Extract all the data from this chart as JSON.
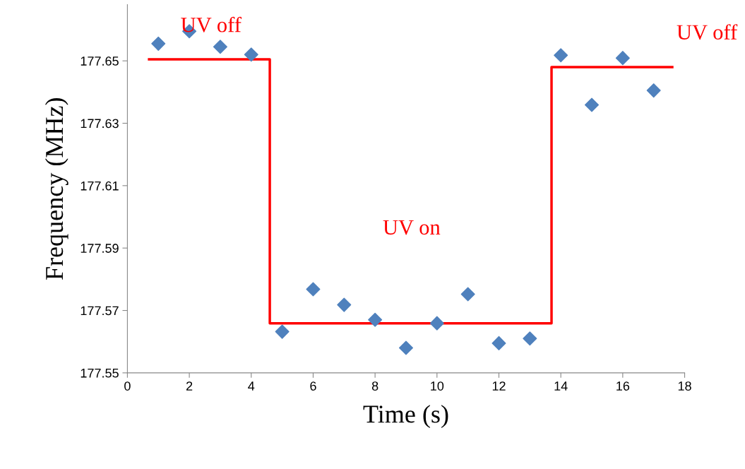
{
  "chart_data": {
    "type": "scatter",
    "xlabel": "Time (s)",
    "ylabel": "Frequency (MHz)",
    "xlim": [
      0,
      18
    ],
    "ylim": [
      177.55,
      177.668
    ],
    "xticks": [
      0,
      2,
      4,
      6,
      8,
      10,
      12,
      14,
      16,
      18
    ],
    "yticks": [
      177.55,
      177.57,
      177.59,
      177.61,
      177.63,
      177.65
    ],
    "grid": false,
    "legend": false,
    "x": [
      1,
      2,
      3,
      4,
      5,
      6,
      7,
      8,
      9,
      10,
      11,
      12,
      13,
      14,
      15,
      16,
      17
    ],
    "series": [
      {
        "marker": "diamond",
        "color": "#4f81bd",
        "values": [
          177.6555,
          177.6595,
          177.6545,
          177.652,
          177.5632,
          177.5768,
          177.5718,
          177.567,
          177.558,
          177.5659,
          177.5752,
          177.5595,
          177.561,
          177.6518,
          177.6359,
          177.6509,
          177.6405
        ]
      },
      {
        "type": "line",
        "color": "#ff0000",
        "x": [
          0.7,
          4.6,
          4.6,
          13.7,
          13.7,
          17.6
        ],
        "values": [
          177.6505,
          177.6505,
          177.5659,
          177.5659,
          177.648,
          177.648
        ]
      }
    ],
    "annotations": [
      "UV off",
      "UV on",
      "UV off"
    ]
  }
}
